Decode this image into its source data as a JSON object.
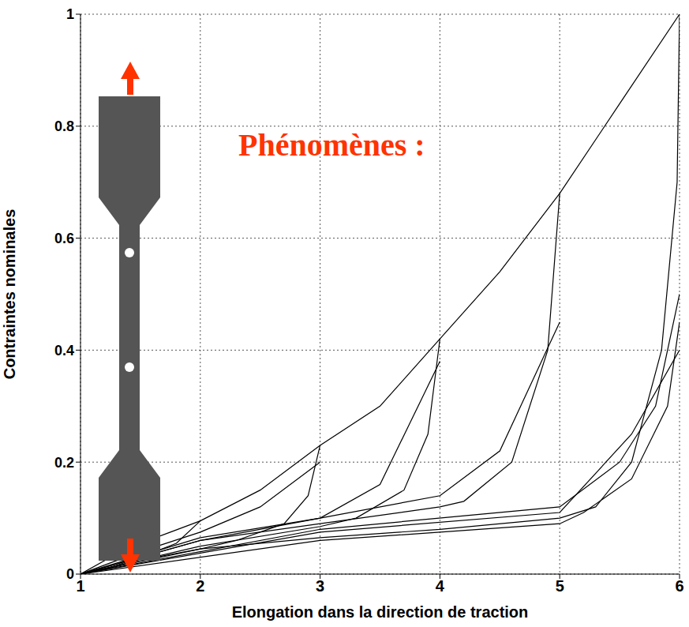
{
  "chart_data": {
    "type": "line",
    "annotation": "Phénomènes :",
    "x_label": "Elongation dans la direction de traction",
    "y_label": "Contraintes nominales",
    "xlim": [
      1,
      6
    ],
    "xticks": [
      1,
      2,
      3,
      4,
      5,
      6
    ],
    "ylim": [
      0,
      1
    ],
    "yticks": [
      0,
      0.2,
      0.4,
      0.6,
      0.8,
      1
    ],
    "grid": true,
    "series": [
      {
        "color": "#000000",
        "x": [
          1,
          1.25,
          1.5,
          1.75,
          2,
          2.5,
          3,
          3.5,
          4,
          4.5,
          5,
          5.5,
          6
        ],
        "values": [
          0,
          0.03,
          0.055,
          0.075,
          0.095,
          0.15,
          0.23,
          0.3,
          0.42,
          0.54,
          0.68,
          0.84,
          1.0
        ]
      },
      {
        "color": "#000000",
        "x": [
          2,
          1.8,
          1.5,
          1.25,
          1
        ],
        "values": [
          0.095,
          0.055,
          0.03,
          0.012,
          0
        ]
      },
      {
        "color": "#000000",
        "x": [
          1,
          1.5,
          2,
          2.5,
          3
        ],
        "values": [
          0,
          0.04,
          0.075,
          0.12,
          0.2
        ]
      },
      {
        "color": "#000000",
        "x": [
          3,
          2.9,
          2.7,
          2.3,
          2,
          1.5,
          1
        ],
        "values": [
          0.23,
          0.14,
          0.09,
          0.06,
          0.045,
          0.025,
          0
        ]
      },
      {
        "color": "#000000",
        "x": [
          1,
          2,
          3,
          3.5,
          4
        ],
        "values": [
          0,
          0.06,
          0.1,
          0.16,
          0.38
        ]
      },
      {
        "color": "#000000",
        "x": [
          4,
          3.9,
          3.7,
          3.3,
          3,
          2,
          1
        ],
        "values": [
          0.42,
          0.25,
          0.15,
          0.1,
          0.085,
          0.05,
          0
        ]
      },
      {
        "color": "#000000",
        "x": [
          1,
          2,
          3,
          4,
          4.5,
          5
        ],
        "values": [
          0,
          0.065,
          0.1,
          0.14,
          0.22,
          0.45
        ]
      },
      {
        "color": "#000000",
        "x": [
          5,
          4.9,
          4.6,
          4.2,
          4,
          3,
          2,
          1
        ],
        "values": [
          0.68,
          0.4,
          0.2,
          0.13,
          0.12,
          0.09,
          0.06,
          0
        ]
      },
      {
        "color": "#000000",
        "x": [
          1,
          3,
          5,
          5.5,
          5.8,
          6
        ],
        "values": [
          0,
          0.08,
          0.12,
          0.2,
          0.3,
          0.5
        ]
      },
      {
        "color": "#000000",
        "x": [
          6,
          5.98,
          5.85,
          5.6,
          5.3,
          5,
          4,
          3,
          2,
          1
        ],
        "values": [
          1.0,
          0.7,
          0.4,
          0.2,
          0.12,
          0.1,
          0.08,
          0.065,
          0.045,
          0
        ]
      },
      {
        "color": "#000000",
        "x": [
          1,
          3,
          5,
          5.6,
          6
        ],
        "values": [
          0,
          0.075,
          0.11,
          0.25,
          0.4
        ]
      },
      {
        "color": "#000000",
        "x": [
          6,
          5.9,
          5.6,
          5.2,
          5,
          3,
          1
        ],
        "values": [
          0.45,
          0.3,
          0.17,
          0.11,
          0.09,
          0.06,
          0
        ]
      }
    ]
  }
}
